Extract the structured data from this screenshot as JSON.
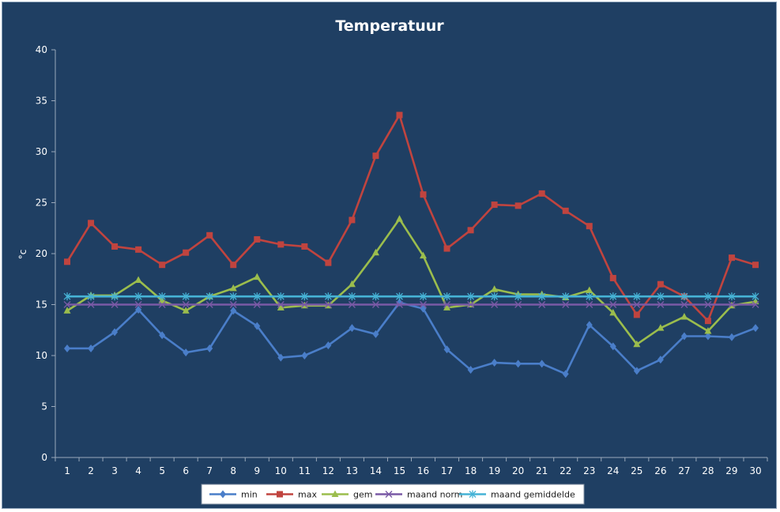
{
  "chart_data": {
    "type": "line",
    "title": "Temperatuur",
    "xlabel": "",
    "ylabel": "°c",
    "ylim": [
      0,
      40
    ],
    "yticks": [
      0,
      5,
      10,
      15,
      20,
      25,
      30,
      35,
      40
    ],
    "grid": false,
    "legend_position": "bottom",
    "categories": [
      "1",
      "2",
      "3",
      "4",
      "5",
      "6",
      "7",
      "8",
      "9",
      "10",
      "11",
      "12",
      "13",
      "14",
      "15",
      "16",
      "17",
      "18",
      "19",
      "20",
      "21",
      "22",
      "23",
      "24",
      "25",
      "26",
      "27",
      "28",
      "29",
      "30"
    ],
    "series": [
      {
        "name": "min",
        "color": "#4a7ec9",
        "marker": "diamond",
        "values": [
          10.7,
          10.7,
          12.3,
          14.5,
          12.0,
          10.3,
          10.7,
          14.4,
          12.9,
          9.8,
          10.0,
          11.0,
          12.7,
          12.1,
          15.2,
          14.6,
          10.6,
          8.6,
          9.3,
          9.2,
          9.2,
          8.2,
          13.0,
          10.9,
          8.5,
          9.6,
          11.9,
          11.9,
          11.8,
          12.7
        ]
      },
      {
        "name": "max",
        "color": "#c0443f",
        "marker": "square",
        "values": [
          19.2,
          23.0,
          20.7,
          20.4,
          18.9,
          20.1,
          21.8,
          18.9,
          21.4,
          20.9,
          20.7,
          19.1,
          23.3,
          29.6,
          33.6,
          25.8,
          20.5,
          22.3,
          24.8,
          24.7,
          25.9,
          24.2,
          22.7,
          17.6,
          14.0,
          17.0,
          15.8,
          13.4,
          19.6,
          18.9
        ]
      },
      {
        "name": "gem",
        "color": "#9bbd4d",
        "marker": "triangle",
        "values": [
          14.4,
          15.9,
          15.9,
          17.4,
          15.4,
          14.4,
          15.8,
          16.6,
          17.7,
          14.7,
          14.9,
          14.9,
          17.0,
          20.1,
          23.4,
          19.8,
          14.7,
          15.0,
          16.5,
          16.0,
          16.0,
          15.7,
          16.4,
          14.2,
          11.1,
          12.7,
          13.8,
          12.4,
          14.9,
          15.3
        ]
      },
      {
        "name": "maand norm",
        "color": "#7a5aa6",
        "marker": "x",
        "values": [
          15.0,
          15.0,
          15.0,
          15.0,
          15.0,
          15.0,
          15.0,
          15.0,
          15.0,
          15.0,
          15.0,
          15.0,
          15.0,
          15.0,
          15.0,
          15.0,
          15.0,
          15.0,
          15.0,
          15.0,
          15.0,
          15.0,
          15.0,
          15.0,
          15.0,
          15.0,
          15.0,
          15.0,
          15.0,
          15.0
        ]
      },
      {
        "name": "maand gemiddelde",
        "color": "#46b3d6",
        "marker": "star",
        "values": [
          15.8,
          15.8,
          15.8,
          15.8,
          15.8,
          15.8,
          15.8,
          15.8,
          15.8,
          15.8,
          15.8,
          15.8,
          15.8,
          15.8,
          15.8,
          15.8,
          15.8,
          15.8,
          15.8,
          15.8,
          15.8,
          15.8,
          15.8,
          15.8,
          15.8,
          15.8,
          15.8,
          15.8,
          15.8,
          15.8
        ]
      }
    ]
  }
}
